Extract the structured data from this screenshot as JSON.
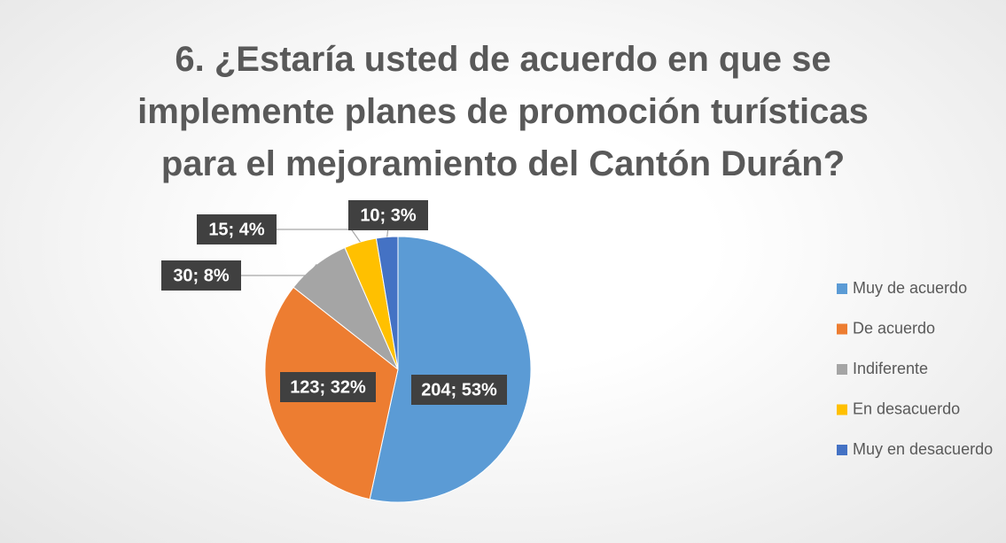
{
  "chart_data": {
    "type": "pie",
    "title": "6. ¿Estaría usted de acuerdo en que se implemente planes de promoción turísticas para el mejoramiento del Cantón Durán?",
    "categories": [
      "Muy de acuerdo",
      "De acuerdo",
      "Indiferente",
      "En desacuerdo",
      "Muy en desacuerdo"
    ],
    "values": [
      204,
      123,
      30,
      15,
      10
    ],
    "value_labels": [
      "204; 53%",
      "123; 32%",
      "30; 8%",
      "15; 4%",
      "10; 3%"
    ],
    "colors": [
      "#5b9bd5",
      "#ed7d31",
      "#a5a5a5",
      "#ffc000",
      "#4472c4"
    ],
    "legend": "right"
  }
}
